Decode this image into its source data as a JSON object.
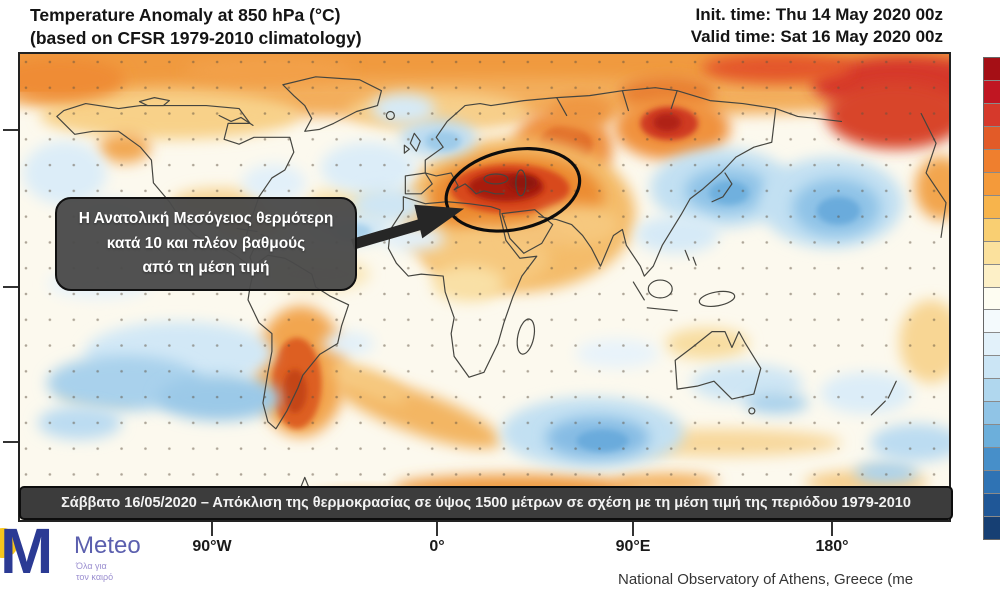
{
  "header": {
    "title_line1": "Temperature Anomaly at 850 hPa (°C)",
    "title_line2": "(based on CFSR 1979-2010 climatology)",
    "init_time": "Init. time: Thu 14 May 2020 00z",
    "valid_time": "Valid time: Sat 16 May 2020 00z"
  },
  "map": {
    "annotation": {
      "line1": "Η Ανατολική Μεσόγειος θερμότερη",
      "line2": "κατά 10 και πλέον βαθμούς",
      "line3": "από τη μέση τιμή"
    },
    "caption": "Σάββατο 16/05/2020 – Απόκλιση της θερμοκρασίας σε ύψος 1500 μέτρων σε σχέση με τη μέση τιμή της περιόδου 1979-2010",
    "axis_labels": [
      "90°W",
      "0°",
      "90°E",
      "180°"
    ]
  },
  "colorbar": {
    "description": "temperature anomaly scale, warm (top) to cold (bottom), numeric labels cut off at image edge",
    "colors": [
      "#a50f15",
      "#c01622",
      "#d6392b",
      "#e25b28",
      "#ef7f2e",
      "#f49a3a",
      "#f7b44c",
      "#f9cf72",
      "#fbe19d",
      "#fdf0c7",
      "#fefdf2",
      "#f4fafd",
      "#e2f1fa",
      "#cbe5f5",
      "#b0d7ee",
      "#90c4e6",
      "#6cafdb",
      "#478fc9",
      "#2f73b4",
      "#1f5797",
      "#163f73"
    ]
  },
  "footer": {
    "logo": {
      "initial": "M",
      "name": "Meteo",
      "sub_line1": "Όλα για",
      "sub_line2": "τον καιρό"
    },
    "attribution": "National Observatory of Athens, Greece (me"
  }
}
